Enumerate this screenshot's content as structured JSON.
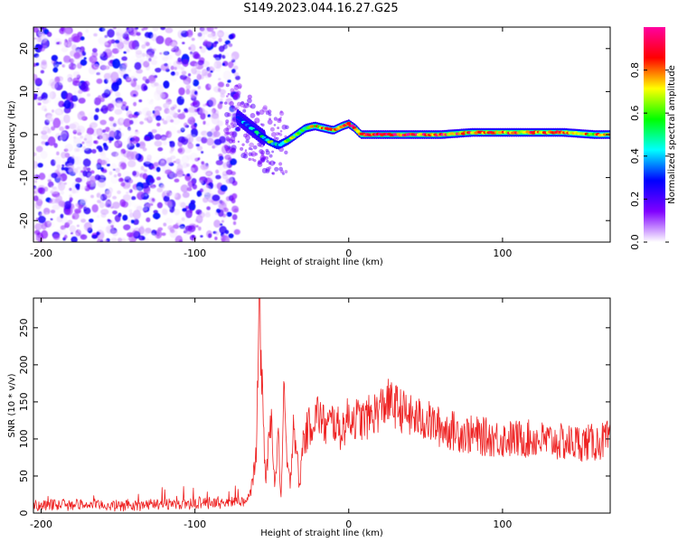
{
  "title": "S149.2023.044.16.27.G25",
  "chart_data": [
    {
      "type": "heatmap",
      "xlabel": "Height of straight line (km)",
      "ylabel": "Frequency (Hz)",
      "xlim": [
        -205,
        170
      ],
      "ylim": [
        -25,
        25
      ],
      "xticks": [
        -200,
        -100,
        0,
        100
      ],
      "yticks": [
        -20,
        -10,
        0,
        10,
        20
      ],
      "colorbar": {
        "label": "Normalized spectral amplitude",
        "range": [
          0,
          1
        ],
        "ticks": [
          0.0,
          0.2,
          0.4,
          0.6,
          0.8
        ],
        "colors": [
          "#ffffff",
          "#8000ff",
          "#0000ff",
          "#00ffff",
          "#00ff00",
          "#ffff00",
          "#ff0000",
          "#ff00a0"
        ]
      },
      "noise_region": {
        "x": [
          -205,
          -72
        ],
        "y": [
          -25,
          25
        ],
        "amplitude": [
          0.0,
          0.3
        ]
      },
      "ridge": {
        "x": [
          -72,
          -65,
          -58,
          -52,
          -46,
          -40,
          -34,
          -28,
          -22,
          -16,
          -10,
          -4,
          0,
          4,
          8,
          20,
          40,
          60,
          80,
          100,
          120,
          140,
          160,
          170
        ],
        "frequency": [
          4,
          2,
          0,
          -1.5,
          -2.5,
          -1.5,
          0,
          1.5,
          2,
          1.5,
          1,
          2,
          2.5,
          1.5,
          0,
          0,
          0,
          0,
          0.5,
          0.5,
          0.5,
          0.5,
          0,
          0
        ],
        "amplitude": [
          0.3,
          0.4,
          0.45,
          0.5,
          0.5,
          0.55,
          0.6,
          0.6,
          0.7,
          0.7,
          0.75,
          0.75,
          0.8,
          0.85,
          0.9,
          0.9,
          0.9,
          0.85,
          0.8,
          0.8,
          0.8,
          0.75,
          0.7,
          0.7
        ]
      }
    },
    {
      "type": "line",
      "xlabel": "Height of straight line (km)",
      "ylabel": "SNR (10 * v/v)",
      "xlim": [
        -205,
        170
      ],
      "ylim": [
        0,
        290
      ],
      "xticks": [
        -200,
        -100,
        0,
        100
      ],
      "yticks": [
        0,
        50,
        100,
        150,
        200,
        250
      ],
      "series": [
        {
          "color": "#ee2222",
          "x": [
            -205,
            -180,
            -150,
            -120,
            -90,
            -70,
            -64,
            -60,
            -58,
            -56,
            -54,
            -52,
            -50,
            -48,
            -46,
            -44,
            -42,
            -40,
            -38,
            -36,
            -34,
            -32,
            -30,
            -25,
            -20,
            -15,
            -10,
            -5,
            0,
            10,
            20,
            25,
            30,
            40,
            50,
            60,
            70,
            80,
            100,
            120,
            140,
            160,
            170
          ],
          "y": [
            10,
            12,
            10,
            12,
            14,
            15,
            25,
            80,
            290,
            150,
            40,
            90,
            130,
            30,
            110,
            20,
            160,
            60,
            40,
            125,
            90,
            30,
            95,
            120,
            135,
            115,
            125,
            110,
            130,
            125,
            140,
            150,
            145,
            130,
            125,
            115,
            110,
            105,
            100,
            100,
            95,
            95,
            100
          ]
        }
      ]
    }
  ]
}
